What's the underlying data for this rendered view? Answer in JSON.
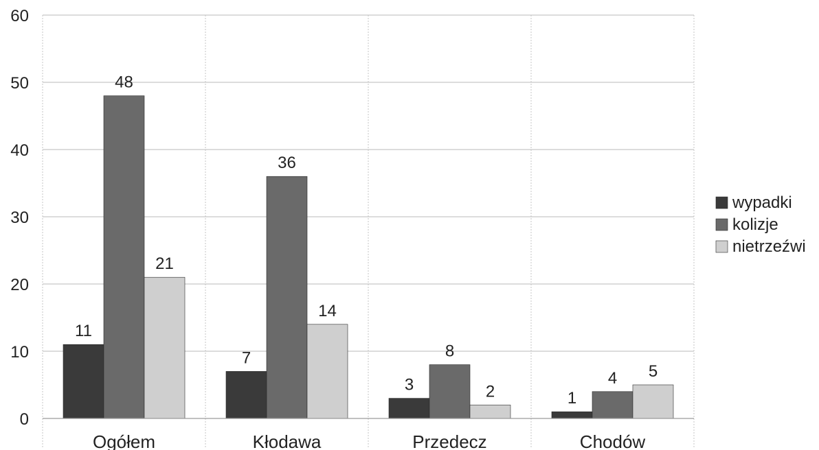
{
  "chart_data": {
    "type": "bar",
    "categories": [
      "Ogółem",
      "Kłodawa",
      "Przedecz",
      "Chodów"
    ],
    "series": [
      {
        "name": "wypadki",
        "values": [
          11,
          7,
          3,
          1
        ],
        "color": "#3a3a3a"
      },
      {
        "name": "kolizje",
        "values": [
          48,
          36,
          8,
          4
        ],
        "color": "#6a6a6a"
      },
      {
        "name": "nietrzeźwi",
        "values": [
          21,
          14,
          2,
          5
        ],
        "color": "#cfcfcf"
      }
    ],
    "ylim": [
      0,
      60
    ],
    "yticks": [
      "0",
      "10",
      "20",
      "30",
      "40",
      "50",
      "60"
    ],
    "title": "",
    "xlabel": "",
    "ylabel": "",
    "grid": true,
    "legend_position": "right",
    "data_labels": true
  }
}
